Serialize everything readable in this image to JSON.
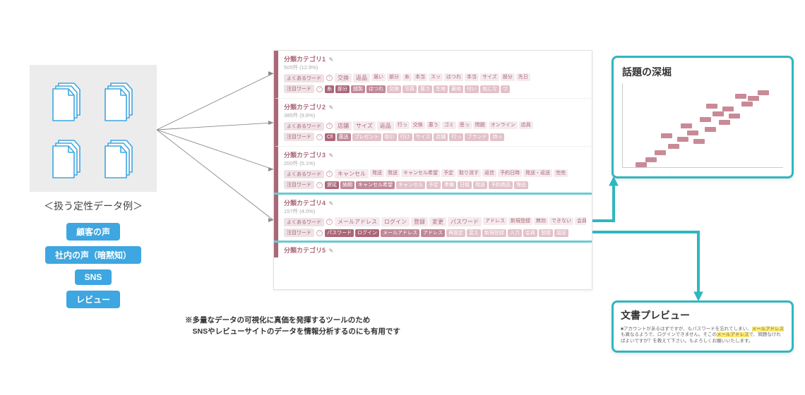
{
  "docs_label": "＜扱う定性データ例＞",
  "pills": [
    "顧客の声",
    "社内の声（暗黙知）",
    "SNS",
    "レビュー"
  ],
  "footnote": {
    "l1": "※多量なデータの可視化に真価を発揮するツールのため",
    "l2": "　SNSやレビューサイトのデータを情報分析するのにも有用です"
  },
  "row_labels": {
    "common": "よくあるワード",
    "notable": "注目ワード"
  },
  "categories": [
    {
      "title": "分類カテゴリ1",
      "count": "505件 (12.9%)",
      "common": [
        {
          "t": "交換",
          "s": "lg",
          "c": "light"
        },
        {
          "t": "返品",
          "s": "lg",
          "c": "light"
        },
        {
          "t": "届い",
          "c": "light"
        },
        {
          "t": "部分",
          "c": "light"
        },
        {
          "t": "糸",
          "c": "light"
        },
        {
          "t": "本当",
          "c": "light"
        },
        {
          "t": "スッ",
          "c": "light"
        },
        {
          "t": "ほつれ",
          "c": "light"
        },
        {
          "t": "本当",
          "c": "light"
        },
        {
          "t": "サイズ",
          "c": "light"
        },
        {
          "t": "部分",
          "c": "light"
        },
        {
          "t": "先日",
          "c": "light"
        }
      ],
      "notable": [
        {
          "t": "糸",
          "c": "vdark"
        },
        {
          "t": "部分",
          "c": "vdark"
        },
        {
          "t": "縫製",
          "c": "dark"
        },
        {
          "t": "ほつれ",
          "c": "dark"
        },
        {
          "t": "交換",
          "c": "mid"
        },
        {
          "t": "写真",
          "c": "mid"
        },
        {
          "t": "悪う",
          "c": "mid"
        },
        {
          "t": "生地",
          "c": "mid"
        },
        {
          "t": "裏地",
          "c": "mid"
        },
        {
          "t": "付い",
          "c": "mid"
        },
        {
          "t": "気にな",
          "c": "mid"
        },
        {
          "t": "ワ",
          "c": "mid"
        }
      ]
    },
    {
      "title": "分類カテゴリ2",
      "count": "385件 (9.8%)",
      "common": [
        {
          "t": "店舗",
          "s": "lg",
          "c": "light"
        },
        {
          "t": "サイズ",
          "s": "lg",
          "c": "light"
        },
        {
          "t": "返品",
          "s": "lg",
          "c": "light"
        },
        {
          "t": "行っ",
          "c": "light"
        },
        {
          "t": "交換",
          "c": "light"
        },
        {
          "t": "悪う",
          "c": "light"
        },
        {
          "t": "ゴミ",
          "c": "light"
        },
        {
          "t": "思っ",
          "c": "light"
        },
        {
          "t": "問題",
          "c": "light"
        },
        {
          "t": "オンライン",
          "c": "light"
        },
        {
          "t": "店員",
          "c": "light"
        }
      ],
      "notable": [
        {
          "t": "Cfl",
          "c": "vdark"
        },
        {
          "t": "悪送",
          "c": "dark"
        },
        {
          "t": "プレゼント",
          "c": "mid"
        },
        {
          "t": "取引",
          "c": "mid"
        },
        {
          "t": "行け",
          "c": "mid"
        },
        {
          "t": "サイズ",
          "c": "mid"
        },
        {
          "t": "店舗",
          "c": "mid"
        },
        {
          "t": "行っ",
          "c": "mid"
        },
        {
          "t": "ブランド",
          "c": "mid"
        },
        {
          "t": "持っ",
          "c": "mid"
        }
      ]
    },
    {
      "title": "分類カテゴリ3",
      "count": "200件 (5.1%)",
      "common": [
        {
          "t": "キャンセル",
          "s": "lg",
          "c": "light"
        },
        {
          "t": "発送",
          "c": "light"
        },
        {
          "t": "発送",
          "c": "light"
        },
        {
          "t": "キャンセル希望",
          "c": "light"
        },
        {
          "t": "予定",
          "c": "light"
        },
        {
          "t": "取り消す",
          "c": "light"
        },
        {
          "t": "返信",
          "c": "light"
        },
        {
          "t": "予約日時",
          "c": "light"
        },
        {
          "t": "発送・返送",
          "c": "light"
        },
        {
          "t": "完売",
          "c": "light"
        }
      ],
      "notable": [
        {
          "t": "遅延",
          "c": "vdark"
        },
        {
          "t": "納期",
          "c": "dark"
        },
        {
          "t": "キャンセル希望",
          "c": "dark"
        },
        {
          "t": "キャンセル",
          "c": "mid"
        },
        {
          "t": "予定",
          "c": "mid"
        },
        {
          "t": "準備",
          "c": "mid"
        },
        {
          "t": "日程",
          "c": "mid"
        },
        {
          "t": "発送",
          "c": "mid"
        },
        {
          "t": "予約商品",
          "c": "mid"
        },
        {
          "t": "理由",
          "c": "mid"
        }
      ]
    },
    {
      "title": "分類カテゴリ4",
      "count": "157件 (4.0%)",
      "common": [
        {
          "t": "メールアドレス",
          "s": "lg",
          "c": "light"
        },
        {
          "t": "ログイン",
          "s": "lg",
          "c": "light"
        },
        {
          "t": "登録",
          "s": "lg",
          "c": "light"
        },
        {
          "t": "変更",
          "s": "lg",
          "c": "light"
        },
        {
          "t": "パスワード",
          "s": "lg",
          "c": "light"
        },
        {
          "t": "アドレス",
          "c": "light"
        },
        {
          "t": "新規登録",
          "c": "light"
        },
        {
          "t": "無効",
          "c": "light"
        },
        {
          "t": "できない",
          "c": "light"
        },
        {
          "t": "会員",
          "c": "light"
        },
        {
          "t": "入力",
          "c": "light"
        },
        {
          "t": "メールアドレス変更",
          "c": "light"
        }
      ],
      "notable": [
        {
          "t": "パスワード",
          "c": "vdark"
        },
        {
          "t": "ログイン",
          "c": "vdark"
        },
        {
          "t": "メールアドレス",
          "c": "dark"
        },
        {
          "t": "アドレス",
          "c": "dark"
        },
        {
          "t": "再設定",
          "c": "mid"
        },
        {
          "t": "変え",
          "c": "mid"
        },
        {
          "t": "新規登録",
          "c": "mid"
        },
        {
          "t": "入力",
          "c": "mid"
        },
        {
          "t": "会員",
          "c": "mid"
        },
        {
          "t": "登録",
          "c": "mid"
        },
        {
          "t": "認証",
          "c": "mid"
        }
      ]
    },
    {
      "title": "分類カテゴリ5",
      "count": ""
    }
  ],
  "scatter": {
    "title": "話題の深堀",
    "points": [
      {
        "x": 0.84,
        "y": 0.08
      },
      {
        "x": 0.78,
        "y": 0.15
      },
      {
        "x": 0.7,
        "y": 0.13
      },
      {
        "x": 0.74,
        "y": 0.22
      },
      {
        "x": 0.62,
        "y": 0.28
      },
      {
        "x": 0.56,
        "y": 0.34
      },
      {
        "x": 0.48,
        "y": 0.4
      },
      {
        "x": 0.51,
        "y": 0.52
      },
      {
        "x": 0.6,
        "y": 0.44
      },
      {
        "x": 0.4,
        "y": 0.56
      },
      {
        "x": 0.34,
        "y": 0.64
      },
      {
        "x": 0.28,
        "y": 0.72
      },
      {
        "x": 0.44,
        "y": 0.66
      },
      {
        "x": 0.2,
        "y": 0.8
      },
      {
        "x": 0.14,
        "y": 0.88
      },
      {
        "x": 0.08,
        "y": 0.94
      },
      {
        "x": 0.36,
        "y": 0.48
      },
      {
        "x": 0.24,
        "y": 0.6
      },
      {
        "x": 0.66,
        "y": 0.36
      },
      {
        "x": 0.52,
        "y": 0.24
      }
    ]
  },
  "preview": {
    "title": "文書プレビュー",
    "body_pre": "■アカウントがあるはずですが、もパスワードを忘れてしまい、",
    "hl1": "メールアドレス",
    "body_mid": "も異なるようで、ログインできません。そこの",
    "hl2": "メールアドレス",
    "body_post": "で、問題なければよいですが？を教えて下さい。もよろしくお願いいたします。"
  },
  "colors": {
    "teal": "#2fb7bf",
    "wine": "#8b2c43",
    "blue": "#3ea6e0"
  }
}
